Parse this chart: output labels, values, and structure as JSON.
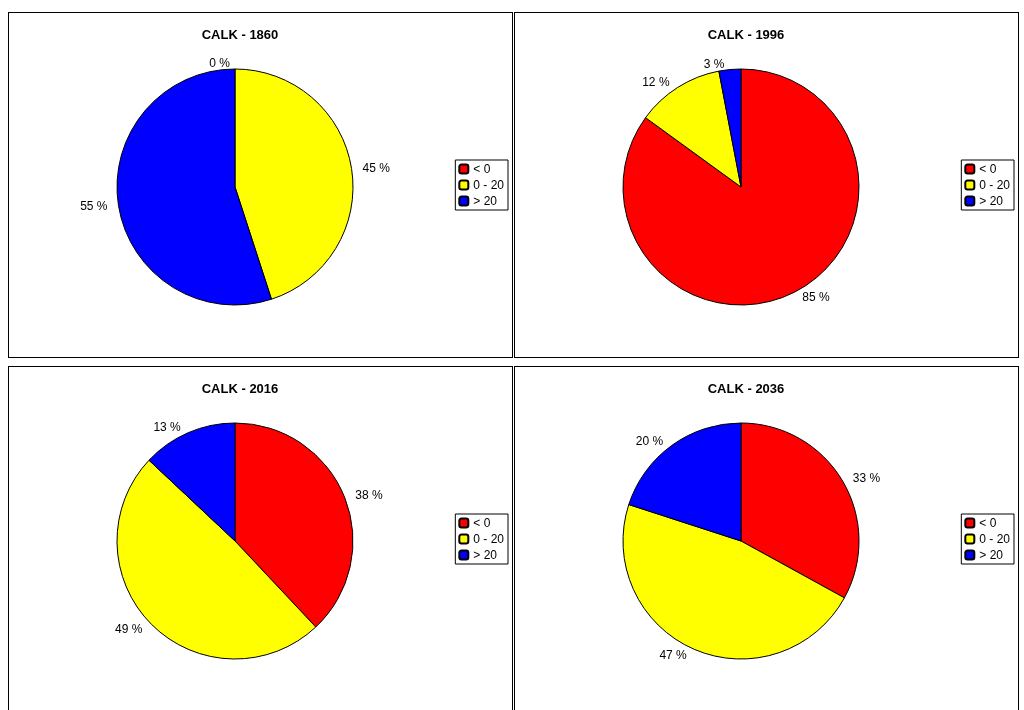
{
  "chart_data": [
    {
      "type": "pie",
      "title": "CALK - 1860",
      "categories": [
        "< 0",
        "0 - 20",
        "> 20"
      ],
      "values": [
        0,
        45,
        55
      ],
      "value_labels": [
        "0 %",
        "45 %",
        "55 %"
      ],
      "colors": [
        "#ff0000",
        "#ffff00",
        "#0000ff"
      ],
      "legend": "right"
    },
    {
      "type": "pie",
      "title": "CALK - 1996",
      "categories": [
        "< 0",
        "0 - 20",
        "> 20"
      ],
      "values": [
        85,
        12,
        3
      ],
      "value_labels": [
        "85 %",
        "12 %",
        "3 %"
      ],
      "colors": [
        "#ff0000",
        "#ffff00",
        "#0000ff"
      ],
      "legend": "right"
    },
    {
      "type": "pie",
      "title": "CALK - 2016",
      "categories": [
        "< 0",
        "0 - 20",
        "> 20"
      ],
      "values": [
        38,
        49,
        13
      ],
      "value_labels": [
        "38 %",
        "49 %",
        "13 %"
      ],
      "colors": [
        "#ff0000",
        "#ffff00",
        "#0000ff"
      ],
      "legend": "right"
    },
    {
      "type": "pie",
      "title": "CALK - 2036",
      "categories": [
        "< 0",
        "0 - 20",
        "> 20"
      ],
      "values": [
        33,
        47,
        20
      ],
      "value_labels": [
        "33 %",
        "47 %",
        "20 %"
      ],
      "colors": [
        "#ff0000",
        "#ffff00",
        "#0000ff"
      ],
      "legend": "right"
    }
  ]
}
